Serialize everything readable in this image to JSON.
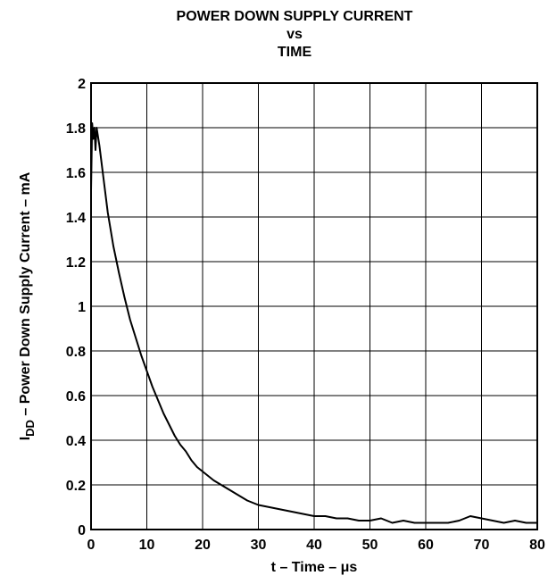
{
  "chart_data": {
    "type": "line",
    "title_lines": [
      "POWER DOWN SUPPLY CURRENT",
      "vs",
      "TIME"
    ],
    "xlabel": "t – Time – μs",
    "ylabel": {
      "prefix": "I",
      "subscript": "DD",
      "rest": " – Power Down Supply Current – mA"
    },
    "xlim": [
      0,
      80
    ],
    "ylim": [
      0,
      2
    ],
    "xticks": [
      0,
      10,
      20,
      30,
      40,
      50,
      60,
      70,
      80
    ],
    "yticks": [
      0,
      0.2,
      0.4,
      0.6,
      0.8,
      1,
      1.2,
      1.4,
      1.6,
      1.8,
      2
    ],
    "xtick_labels": [
      "0",
      "10",
      "20",
      "30",
      "40",
      "50",
      "60",
      "70",
      "80"
    ],
    "ytick_labels": [
      "0",
      "0.2",
      "0.4",
      "0.6",
      "0.8",
      "1",
      "1.2",
      "1.4",
      "1.6",
      "1.8",
      "2"
    ],
    "grid": true,
    "series": [
      {
        "x": [
          0,
          0.2,
          0.4,
          0.6,
          0.8,
          1.0,
          1.5,
          2,
          3,
          4,
          5,
          6,
          7,
          8,
          9,
          10,
          11,
          12,
          13,
          14,
          15,
          16,
          17,
          18,
          19,
          20,
          22,
          24,
          26,
          28,
          30,
          32,
          34,
          36,
          38,
          40,
          42,
          44,
          46,
          48,
          50,
          52,
          54,
          56,
          58,
          60,
          62,
          64,
          66,
          68,
          70,
          72,
          74,
          76,
          78,
          80
        ],
        "y": [
          1.52,
          1.82,
          1.75,
          1.8,
          1.7,
          1.8,
          1.72,
          1.62,
          1.42,
          1.27,
          1.15,
          1.04,
          0.94,
          0.86,
          0.78,
          0.71,
          0.64,
          0.58,
          0.52,
          0.47,
          0.42,
          0.38,
          0.35,
          0.31,
          0.28,
          0.26,
          0.22,
          0.19,
          0.16,
          0.13,
          0.11,
          0.1,
          0.09,
          0.08,
          0.07,
          0.06,
          0.06,
          0.05,
          0.05,
          0.04,
          0.04,
          0.05,
          0.03,
          0.04,
          0.03,
          0.03,
          0.03,
          0.03,
          0.04,
          0.06,
          0.05,
          0.04,
          0.03,
          0.04,
          0.03,
          0.03
        ]
      }
    ],
    "line_color": "#000000"
  }
}
